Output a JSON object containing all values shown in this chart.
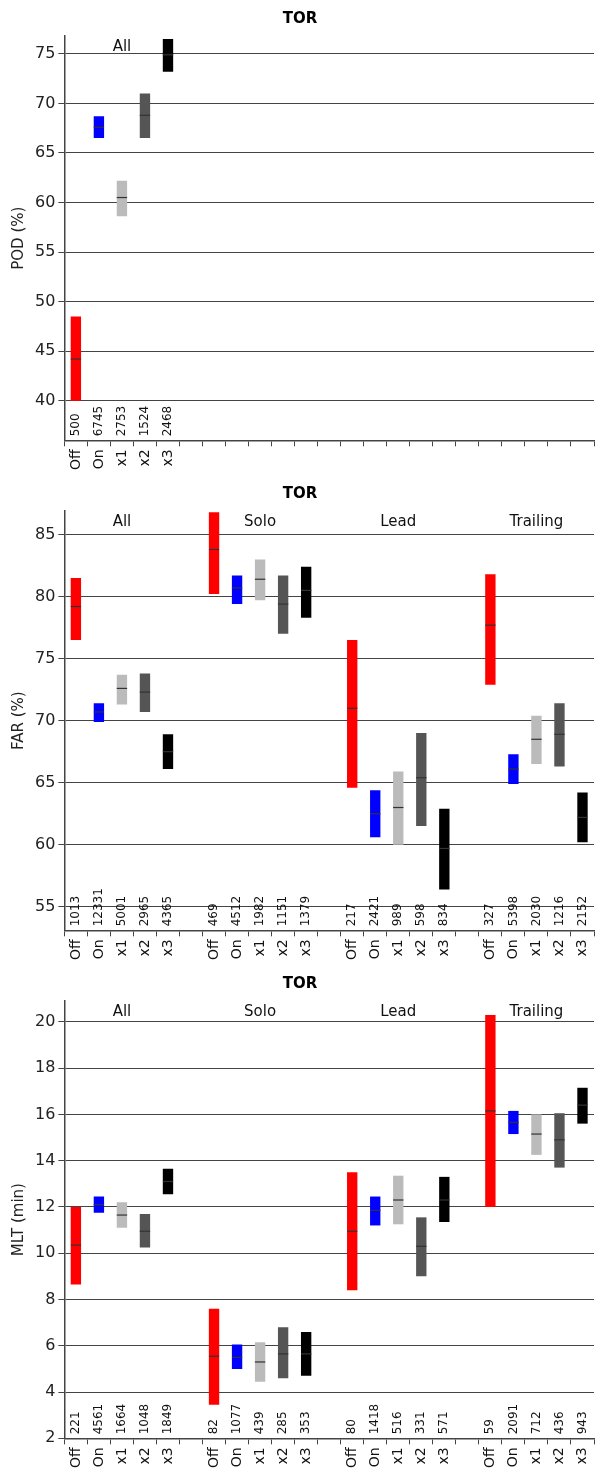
{
  "chart_data": [
    {
      "type": "box",
      "title": "TOR",
      "ylabel": "POD (%)",
      "ylim": [
        36,
        76.8
      ],
      "yticks": [
        40,
        45,
        50,
        55,
        60,
        65,
        70,
        75
      ],
      "grid": "y",
      "categories": [
        "Off",
        "On",
        "x1",
        "x2",
        "x3",
        null,
        null,
        null,
        null,
        null,
        null,
        null,
        null,
        null,
        null,
        null,
        null,
        null,
        null,
        null,
        null,
        null,
        null
      ],
      "colors": [
        "#ff0000",
        "#0000ff",
        "#bbbbbb",
        "#555555",
        "#000000",
        null,
        null,
        null,
        null,
        null,
        null,
        null,
        null,
        null,
        null,
        null,
        null,
        null,
        null,
        null,
        null,
        null,
        null
      ],
      "boxes": [
        {
          "low": 40,
          "q1": 40,
          "median": 44.2,
          "q3": 48.5,
          "high": 48.5
        },
        {
          "low": 66.5,
          "q1": 66.5,
          "median": 67.6,
          "q3": 68.7,
          "high": 68.7
        },
        {
          "low": 58.6,
          "q1": 58.6,
          "median": 60.5,
          "q3": 62.2,
          "high": 62.2
        },
        {
          "low": 66.5,
          "q1": 66.5,
          "median": 68.8,
          "q3": 71.0,
          "high": 71.0
        },
        {
          "low": 73.2,
          "q1": 73.2,
          "median": 74.9,
          "q3": 76.5,
          "high": 76.5
        },
        null,
        null,
        null,
        null,
        null,
        null,
        null,
        null,
        null,
        null,
        null,
        null,
        null,
        null,
        null,
        null,
        null,
        null
      ],
      "annotations": [
        "All",
        "500",
        "6745",
        "2753",
        "1524",
        "2468"
      ]
    },
    {
      "type": "box",
      "title": "TOR",
      "ylabel": "FAR (%)",
      "ylim": [
        53.1,
        86.9
      ],
      "yticks": [
        55,
        60,
        65,
        70,
        75,
        80,
        85
      ],
      "grid": "y",
      "categories": [
        "Off",
        "On",
        "x1",
        "x2",
        "x3",
        null,
        "Off",
        "On",
        "x1",
        "x2",
        "x3",
        null,
        "Off",
        "On",
        "x1",
        "x2",
        "x3",
        null,
        "Off",
        "On",
        "x1",
        "x2",
        "x3"
      ],
      "colors": [
        "#ff0000",
        "#0000ff",
        "#bbbbbb",
        "#555555",
        "#000000",
        null,
        "#ff0000",
        "#0000ff",
        "#bbbbbb",
        "#555555",
        "#000000",
        null,
        "#ff0000",
        "#0000ff",
        "#bbbbbb",
        "#555555",
        "#000000",
        null,
        "#ff0000",
        "#0000ff",
        "#bbbbbb",
        "#555555",
        "#000000"
      ],
      "boxes": [
        {
          "low": 76.5,
          "q1": 76.5,
          "median": 79.2,
          "q3": 81.5,
          "high": 81.5
        },
        {
          "low": 69.9,
          "q1": 69.9,
          "median": 70.7,
          "q3": 71.4,
          "high": 71.4
        },
        {
          "low": 71.3,
          "q1": 71.3,
          "median": 72.6,
          "q3": 73.7,
          "high": 73.7
        },
        {
          "low": 70.7,
          "q1": 70.7,
          "median": 72.3,
          "q3": 73.8,
          "high": 73.8
        },
        {
          "low": 66.1,
          "q1": 66.1,
          "median": 67.5,
          "q3": 68.9,
          "high": 68.9
        },
        null,
        {
          "low": 80.2,
          "q1": 80.2,
          "median": 83.8,
          "q3": 86.8,
          "high": 86.8
        },
        {
          "low": 79.4,
          "q1": 79.4,
          "median": 80.7,
          "q3": 81.7,
          "high": 81.7
        },
        {
          "low": 79.7,
          "q1": 79.7,
          "median": 81.4,
          "q3": 83.0,
          "high": 83.0
        },
        {
          "low": 77.0,
          "q1": 77.0,
          "median": 79.4,
          "q3": 81.7,
          "high": 81.7
        },
        {
          "low": 78.3,
          "q1": 78.3,
          "median": 80.5,
          "q3": 82.4,
          "high": 82.4
        },
        null,
        {
          "low": 64.6,
          "q1": 64.6,
          "median": 71.0,
          "q3": 76.5,
          "high": 76.5
        },
        {
          "low": 60.6,
          "q1": 60.6,
          "median": 62.5,
          "q3": 64.4,
          "high": 64.4
        },
        {
          "low": 60.0,
          "q1": 60.0,
          "median": 63.0,
          "q3": 65.9,
          "high": 65.9
        },
        {
          "low": 61.5,
          "q1": 61.5,
          "median": 65.4,
          "q3": 69.0,
          "high": 69.0
        },
        {
          "low": 56.4,
          "q1": 56.4,
          "median": 59.7,
          "q3": 62.9,
          "high": 62.9
        },
        null,
        {
          "low": 72.9,
          "q1": 72.9,
          "median": 77.7,
          "q3": 81.8,
          "high": 81.8
        },
        {
          "low": 64.9,
          "q1": 64.9,
          "median": 66.1,
          "q3": 67.3,
          "high": 67.3
        },
        {
          "low": 66.5,
          "q1": 66.5,
          "median": 68.5,
          "q3": 70.4,
          "high": 70.4
        },
        {
          "low": 66.3,
          "q1": 66.3,
          "median": 68.9,
          "q3": 71.4,
          "high": 71.4
        },
        {
          "low": 60.2,
          "q1": 60.2,
          "median": 62.2,
          "q3": 64.2,
          "high": 64.2
        }
      ],
      "annotations": [
        "All",
        "Solo",
        "Lead",
        "Trailing",
        "1013",
        "12331",
        "5001",
        "2965",
        "4365",
        "469",
        "4512",
        "1982",
        "1151",
        "1379",
        "217",
        "2421",
        "989",
        "598",
        "834",
        "327",
        "5398",
        "2030",
        "1216",
        "2152"
      ]
    },
    {
      "type": "box",
      "title": "TOR",
      "ylabel": "MLT (min)",
      "ylim": [
        2,
        20.9
      ],
      "yticks": [
        2,
        4,
        6,
        8,
        10,
        12,
        14,
        16,
        18,
        20
      ],
      "grid": "y",
      "categories": [
        "Off",
        "On",
        "x1",
        "x2",
        "x3",
        null,
        "Off",
        "On",
        "x1",
        "x2",
        "x3",
        null,
        "Off",
        "On",
        "x1",
        "x2",
        "x3",
        null,
        "Off",
        "On",
        "x1",
        "x2",
        "x3"
      ],
      "colors": [
        "#ff0000",
        "#0000ff",
        "#bbbbbb",
        "#555555",
        "#000000",
        null,
        "#ff0000",
        "#0000ff",
        "#bbbbbb",
        "#555555",
        "#000000",
        null,
        "#ff0000",
        "#0000ff",
        "#bbbbbb",
        "#555555",
        "#000000",
        null,
        "#ff0000",
        "#0000ff",
        "#bbbbbb",
        "#555555",
        "#000000"
      ],
      "boxes": [
        {
          "low": 8.65,
          "q1": 8.65,
          "median": 10.35,
          "q3": 12.0,
          "high": 12.0
        },
        {
          "low": 11.75,
          "q1": 11.75,
          "median": 12.1,
          "q3": 12.45,
          "high": 12.45
        },
        {
          "low": 11.1,
          "q1": 11.1,
          "median": 11.65,
          "q3": 12.2,
          "high": 12.2
        },
        {
          "low": 10.25,
          "q1": 10.25,
          "median": 10.95,
          "q3": 11.7,
          "high": 11.7
        },
        {
          "low": 12.55,
          "q1": 12.55,
          "median": 13.1,
          "q3": 13.65,
          "high": 13.65
        },
        null,
        {
          "low": 3.45,
          "q1": 3.45,
          "median": 5.55,
          "q3": 7.6,
          "high": 7.6
        },
        {
          "low": 5.0,
          "q1": 5.0,
          "median": 5.5,
          "q3": 6.05,
          "high": 6.05
        },
        {
          "low": 4.45,
          "q1": 4.45,
          "median": 5.3,
          "q3": 6.15,
          "high": 6.15
        },
        {
          "low": 4.6,
          "q1": 4.6,
          "median": 5.65,
          "q3": 6.8,
          "high": 6.8
        },
        {
          "low": 4.7,
          "q1": 4.7,
          "median": 5.65,
          "q3": 6.6,
          "high": 6.6
        },
        null,
        {
          "low": 8.4,
          "q1": 8.4,
          "median": 10.95,
          "q3": 13.5,
          "high": 13.5
        },
        {
          "low": 11.2,
          "q1": 11.2,
          "median": 11.85,
          "q3": 12.45,
          "high": 12.45
        },
        {
          "low": 11.25,
          "q1": 11.25,
          "median": 12.3,
          "q3": 13.35,
          "high": 13.35
        },
        {
          "low": 9.0,
          "q1": 9.0,
          "median": 10.3,
          "q3": 11.55,
          "high": 11.55
        },
        {
          "low": 11.35,
          "q1": 11.35,
          "median": 12.3,
          "q3": 13.3,
          "high": 13.3
        },
        null,
        {
          "low": 12.0,
          "q1": 12.0,
          "median": 16.15,
          "q3": 20.3,
          "high": 20.3
        },
        {
          "low": 15.15,
          "q1": 15.15,
          "median": 15.65,
          "q3": 16.15,
          "high": 16.15
        },
        {
          "low": 14.25,
          "q1": 14.25,
          "median": 15.15,
          "q3": 16.0,
          "high": 16.0
        },
        {
          "low": 13.7,
          "q1": 13.7,
          "median": 14.9,
          "q3": 16.05,
          "high": 16.05
        },
        {
          "low": 15.6,
          "q1": 15.6,
          "median": 16.4,
          "q3": 17.15,
          "high": 17.15
        }
      ],
      "annotations": [
        "All",
        "Solo",
        "Lead",
        "Trailing",
        "221",
        "4561",
        "1664",
        "1048",
        "1849",
        "82",
        "1077",
        "439",
        "285",
        "353",
        "80",
        "1418",
        "516",
        "331",
        "571",
        "59",
        "2091",
        "712",
        "436",
        "943"
      ]
    }
  ]
}
